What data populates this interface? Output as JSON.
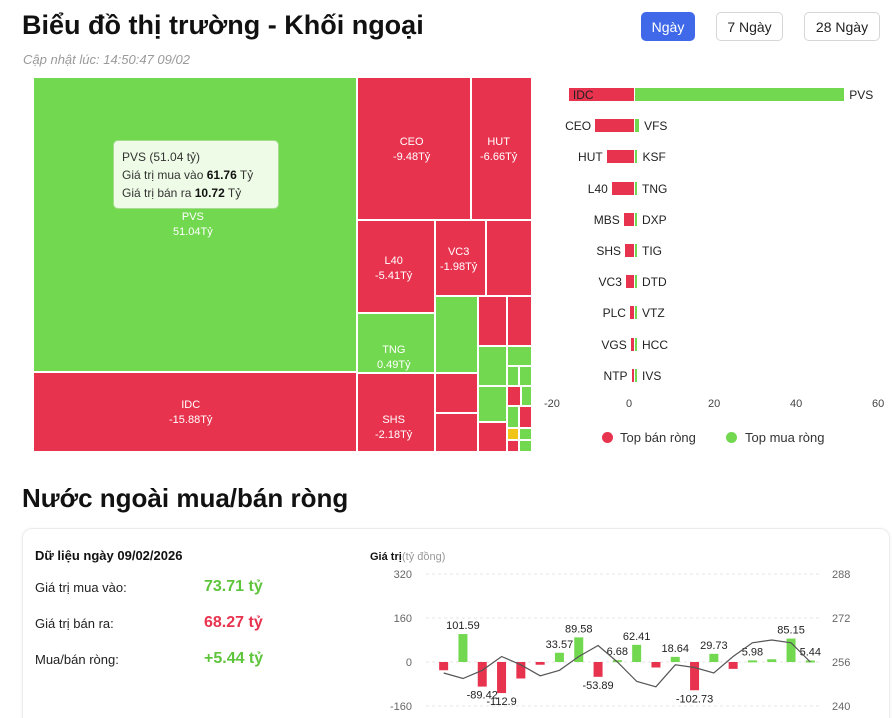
{
  "header": {
    "title": "Biểu đồ thị trường - Khối ngoại",
    "updated": "Cập nhật lúc: 14:50:47 09/02",
    "periods": [
      "Ngày",
      "7 Ngày",
      "28 Ngày"
    ],
    "active_period": "Ngày"
  },
  "colors": {
    "sell": "#e8334f",
    "buy": "#72d850",
    "accent": "#3f69e8",
    "neutral": "#f0c419"
  },
  "treemap": {
    "labels": [
      {
        "name": "PVS",
        "value": "51.04Tỷ"
      },
      {
        "name": "IDC",
        "value": "-15.88Tỷ"
      },
      {
        "name": "CEO",
        "value": "-9.48Tỷ"
      },
      {
        "name": "HUT",
        "value": "-6.66Tỷ"
      },
      {
        "name": "L40",
        "value": "-5.41Tỷ"
      },
      {
        "name": "VC3",
        "value": "-1.98Tỷ"
      },
      {
        "name": "TNG",
        "value": "0.49Tỷ"
      },
      {
        "name": "SHS",
        "value": "-2.18Tỷ"
      }
    ],
    "tooltip": {
      "title": "PVS (51.04 tỷ)",
      "buy_label": "Giá trị mua vào",
      "buy_value": "61.76",
      "sell_label": "Giá trị bán ra",
      "sell_value": "10.72",
      "unit": "Tỷ"
    }
  },
  "chart_data": [
    {
      "type": "bar",
      "orientation": "horizontal",
      "x_ticks": [
        "-20",
        "0",
        "20",
        "40",
        "60"
      ],
      "xlim": [
        -20,
        60
      ],
      "series": [
        {
          "name": "Top bán ròng",
          "labels": [
            "IDC",
            "CEO",
            "HUT",
            "L40",
            "MBS",
            "SHS",
            "VC3",
            "PLC",
            "VGS",
            "NTP"
          ],
          "values": [
            -15.88,
            -9.48,
            -6.66,
            -5.41,
            -2.5,
            -2.18,
            -1.98,
            -1.0,
            -0.8,
            -0.6
          ]
        },
        {
          "name": "Top mua ròng",
          "labels": [
            "PVS",
            "VFS",
            "KSF",
            "TNG",
            "DXP",
            "TIG",
            "DTD",
            "VTZ",
            "HCC",
            "IVS"
          ],
          "values": [
            51.04,
            1.0,
            0.6,
            0.49,
            0.3,
            0.25,
            0.2,
            0.15,
            0.12,
            0.1
          ]
        }
      ],
      "legend": [
        "Top bán ròng",
        "Top mua ròng"
      ]
    },
    {
      "type": "bar",
      "title": "Giá trị",
      "unit": "(tỷ đồng)",
      "y_ticks": [
        "320",
        "160",
        "0",
        "-160"
      ],
      "y2_ticks": [
        "288",
        "272",
        "256",
        "240"
      ],
      "ylim": [
        -160,
        320
      ],
      "y2lim": [
        240,
        288
      ],
      "values": [
        -30,
        101.59,
        -89.42,
        -112.9,
        -60,
        -10,
        33.57,
        89.58,
        -53.89,
        6.68,
        62.41,
        -20,
        18.64,
        -102.73,
        29.73,
        -25,
        5.98,
        10,
        85.15,
        5.44
      ],
      "data_labels": [
        "",
        "101.59",
        "-89.42",
        "-112.9",
        "",
        "",
        "33.57",
        "89.58",
        "-53.89",
        "6.68",
        "62.41",
        "",
        "18.64",
        "-102.73",
        "29.73",
        "",
        "5.98",
        "",
        "85.15",
        "5.44"
      ],
      "line": [
        252,
        250,
        253,
        258,
        255,
        251,
        253,
        258,
        262,
        256,
        249,
        247,
        255,
        254,
        252,
        258,
        263,
        264,
        263,
        256
      ]
    }
  ],
  "summary": {
    "date_label": "Dữ liệu ngày 09/02/2026",
    "rows": [
      {
        "label": "Giá trị mua vào:",
        "value": "73.71 tỷ"
      },
      {
        "label": "Giá trị bán ra:",
        "value": "68.27 tỷ"
      },
      {
        "label": "Mua/bán ròng:",
        "value": "+5.44 tỷ"
      }
    ]
  },
  "section2_title": "Nước ngoài mua/bán ròng"
}
